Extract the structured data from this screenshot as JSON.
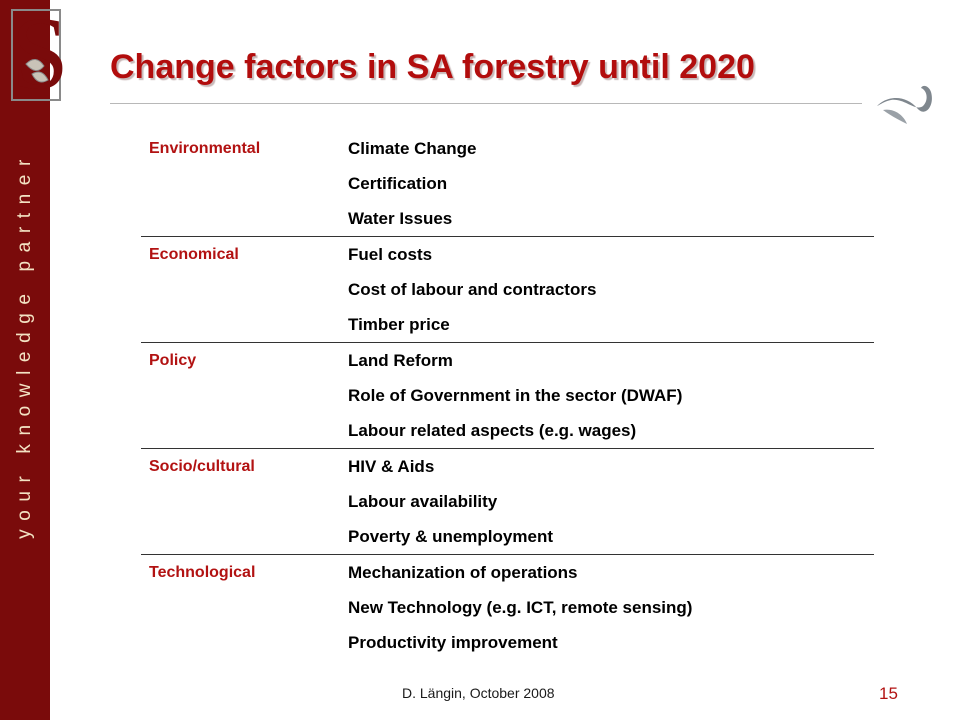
{
  "sidebar": {
    "tagline": "your knowledge partner"
  },
  "header": {
    "title": "Change factors in SA forestry until 2020"
  },
  "colors": {
    "brand_maroon": "#7a0b0b",
    "title_red": "#b20d0d",
    "category_red": "#b21212",
    "cream": "#f3e3c3"
  },
  "icons": {
    "logo": "university-crest-logo",
    "corner": "swirl-fish-icon"
  },
  "table": {
    "groups": [
      {
        "category": "Environmental",
        "items": [
          "Climate Change",
          "Certification",
          "Water Issues"
        ]
      },
      {
        "category": "Economical",
        "items": [
          "Fuel costs",
          "Cost of labour and contractors",
          "Timber price"
        ]
      },
      {
        "category": "Policy",
        "items": [
          "Land Reform",
          "Role of Government in the sector (DWAF)",
          "Labour related aspects (e.g. wages)"
        ]
      },
      {
        "category": "Socio/cultural",
        "items": [
          "HIV & Aids",
          "Labour availability",
          "Poverty & unemployment"
        ]
      },
      {
        "category": "Technological",
        "items": [
          "Mechanization of operations",
          "New Technology (e.g. ICT, remote sensing)",
          "Productivity improvement"
        ]
      }
    ]
  },
  "footer": {
    "author_date": "D. Längin, October 2008",
    "page_number": "15"
  }
}
